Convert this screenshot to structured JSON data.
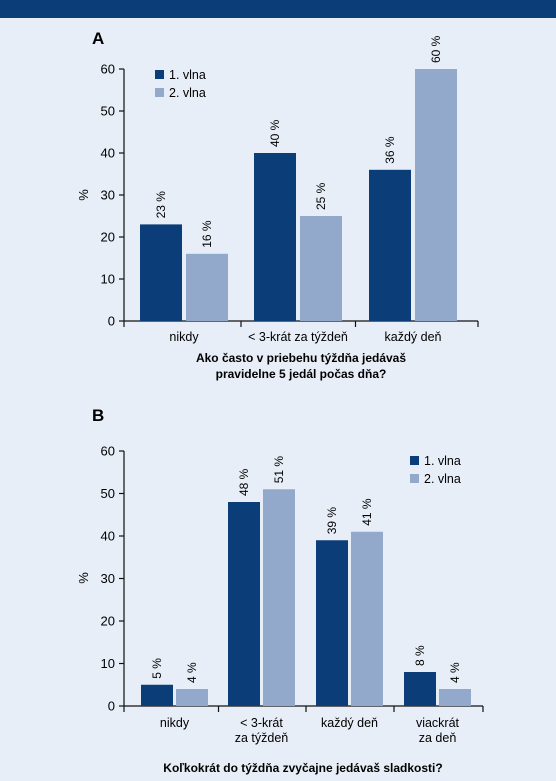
{
  "colors": {
    "series1": "#0b3d78",
    "series2": "#93a9cc",
    "background": "#e8eef7",
    "header": "#0b3d78"
  },
  "chart_data": [
    {
      "type": "bar",
      "panel": "A",
      "ylabel": "%",
      "ylim": [
        0,
        60
      ],
      "yticks": [
        0,
        10,
        20,
        30,
        40,
        50,
        60
      ],
      "categories": [
        [
          "nikdy"
        ],
        [
          "< 3-krát za týždeň"
        ],
        [
          "každý deň"
        ]
      ],
      "series": [
        {
          "name": "1. vlna",
          "values": [
            23,
            40,
            36
          ],
          "labels": [
            "23 %",
            "40 %",
            "36 %"
          ]
        },
        {
          "name": "2. vlna",
          "values": [
            16,
            25,
            60
          ],
          "labels": [
            "16 %",
            "25 %",
            "60 %"
          ]
        }
      ],
      "xlabel": [
        "Ako často v priebehu týždňa jedávaš",
        "pravidelne 5 jedál počas dňa?"
      ],
      "legend": "top-left"
    },
    {
      "type": "bar",
      "panel": "B",
      "ylabel": "%",
      "ylim": [
        0,
        60
      ],
      "yticks": [
        0,
        10,
        20,
        30,
        40,
        50,
        60
      ],
      "categories": [
        [
          "nikdy"
        ],
        [
          "< 3-krát",
          "za týždeň"
        ],
        [
          "každý deň"
        ],
        [
          "viackrát",
          "za deň"
        ]
      ],
      "series": [
        {
          "name": "1. vlna",
          "values": [
            5,
            48,
            39,
            8
          ],
          "labels": [
            "5 %",
            "48 %",
            "39 %",
            "8 %"
          ]
        },
        {
          "name": "2. vlna",
          "values": [
            4,
            51,
            41,
            4
          ],
          "labels": [
            "4 %",
            "51 %",
            "41 %",
            "4 %"
          ]
        }
      ],
      "xlabel": [
        "Koľkokrát do týždňa zvyčajne jedávaš sladkosti?"
      ],
      "legend": "top-right"
    }
  ]
}
